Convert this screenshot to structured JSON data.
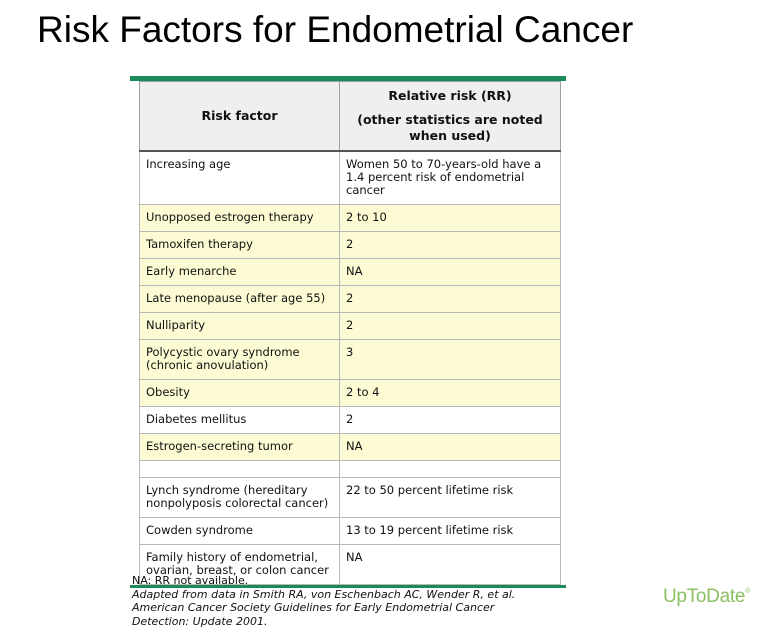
{
  "title": "Risk Factors for Endometrial Cancer",
  "table": {
    "header": {
      "col1": "Risk factor",
      "col2_line1": "Relative risk (RR)",
      "col2_line2": "(other statistics are noted when used)"
    },
    "rows": [
      {
        "factor": "Increasing age",
        "risk": "Women 50 to 70-years-old have a 1.4 percent risk of endometrial cancer",
        "highlight": false
      },
      {
        "factor": "Unopposed estrogen therapy",
        "risk": "2 to 10",
        "highlight": true
      },
      {
        "factor": "Tamoxifen therapy",
        "risk": "2",
        "highlight": true
      },
      {
        "factor": "Early menarche",
        "risk": "NA",
        "highlight": true
      },
      {
        "factor": "Late menopause (after age 55)",
        "risk": "2",
        "highlight": true
      },
      {
        "factor": "Nulliparity",
        "risk": "2",
        "highlight": true
      },
      {
        "factor": "Polycystic ovary syndrome (chronic anovulation)",
        "risk": "3",
        "highlight": true
      },
      {
        "factor": "Obesity",
        "risk": "2 to 4",
        "highlight": true
      },
      {
        "factor": "Diabetes mellitus",
        "risk": "2",
        "highlight": false
      },
      {
        "factor": "Estrogen-secreting tumor",
        "risk": "NA",
        "highlight": true
      },
      {
        "factor": "",
        "risk": "",
        "highlight": false
      },
      {
        "factor": "Lynch syndrome (hereditary nonpolyposis colorectal cancer)",
        "risk": "22 to 50 percent lifetime risk",
        "highlight": false
      },
      {
        "factor": "Cowden syndrome",
        "risk": "13 to 19 percent lifetime risk",
        "highlight": false
      },
      {
        "factor": "Family history of endometrial, ovarian, breast, or colon cancer",
        "risk": "NA",
        "highlight": false
      }
    ]
  },
  "notes": {
    "na_note": "NA: RR not available.",
    "citation_line1": "Adapted from data in Smith RA, von Eschenbach AC, Wender R, et al.",
    "citation_line2": "American Cancer Society Guidelines for Early Endometrial Cancer",
    "citation_line3": "Detection: Update 2001."
  },
  "brand": {
    "name": "UpToDate",
    "mark": "®"
  }
}
